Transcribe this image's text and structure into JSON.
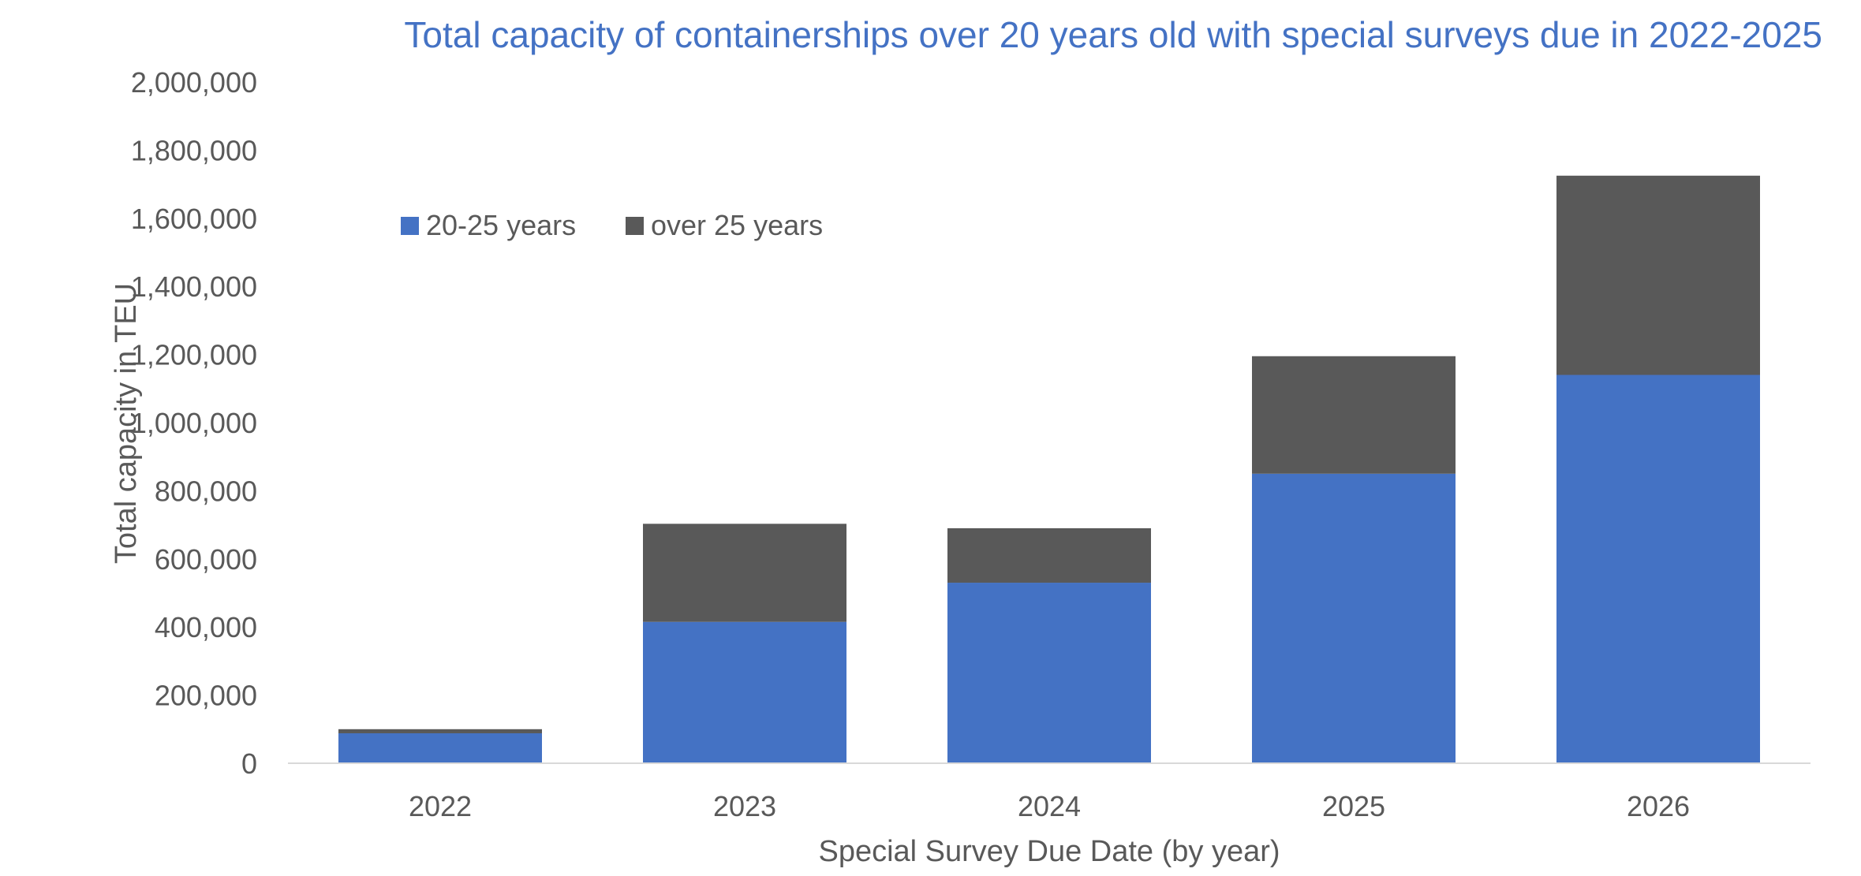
{
  "chart_data": {
    "type": "bar",
    "stacked": true,
    "title": "Total capacity of containerships over 20 years old with special surveys due in 2022-2025",
    "xlabel": "Special Survey Due Date (by year)",
    "ylabel": "Total capacity in TEU",
    "categories": [
      "2022",
      "2023",
      "2024",
      "2025",
      "2026"
    ],
    "series": [
      {
        "name": "20-25 years",
        "color": "#4472C4",
        "values": [
          88000,
          415000,
          530000,
          850000,
          1140000
        ]
      },
      {
        "name": "over 25 years",
        "color": "#595959",
        "values": [
          12000,
          288000,
          160000,
          345000,
          585000
        ]
      }
    ],
    "ylim": [
      0,
      2000000
    ],
    "yticks": [
      0,
      200000,
      400000,
      600000,
      800000,
      1000000,
      1200000,
      1400000,
      1600000,
      1800000,
      2000000
    ],
    "ytick_labels": [
      "0",
      "200,000",
      "400,000",
      "600,000",
      "800,000",
      "1,000,000",
      "1,200,000",
      "1,400,000",
      "1,600,000",
      "1,800,000",
      "2,000,000"
    ],
    "grid": false,
    "legend_position": "top-left",
    "colors": {
      "title": "#4472C4",
      "text": "#595959",
      "axis": "#D9D9D9"
    }
  }
}
